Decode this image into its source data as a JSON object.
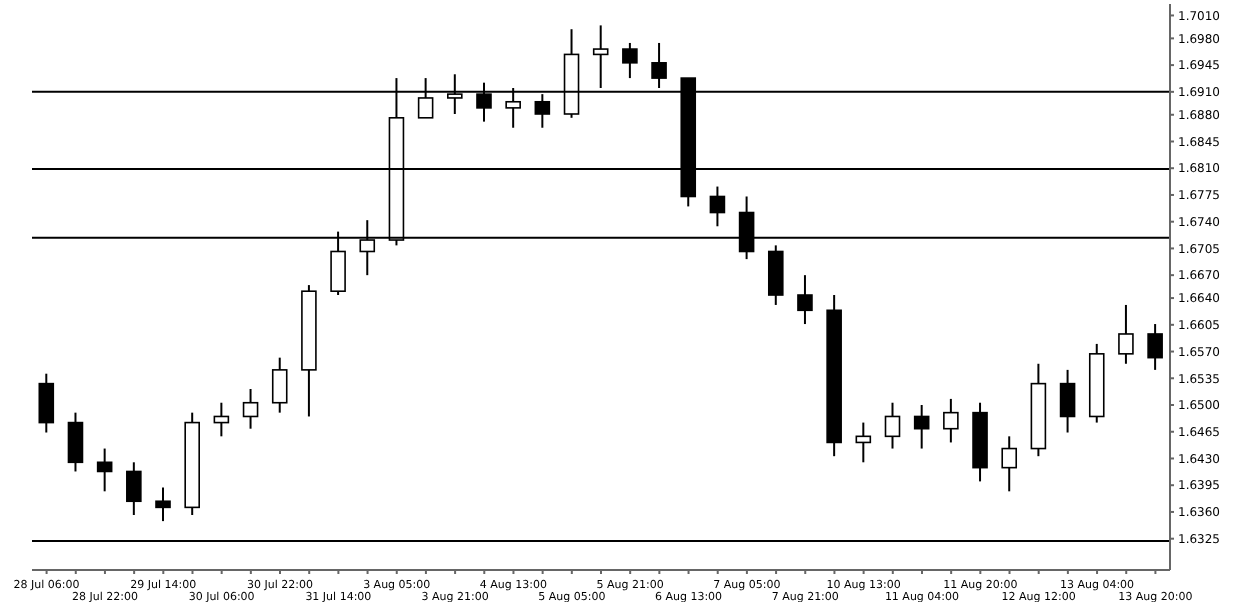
{
  "chart_data": {
    "type": "candlestick",
    "categories": [
      "28 Jul 06:00",
      null,
      "28 Jul 22:00",
      null,
      "29 Jul 14:00",
      null,
      "30 Jul 06:00",
      null,
      "30 Jul 22:00",
      null,
      "31 Jul 14:00",
      null,
      "3 Aug 05:00",
      null,
      "3 Aug 21:00",
      null,
      "4 Aug 13:00",
      null,
      "5 Aug 05:00",
      null,
      "5 Aug 21:00",
      null,
      "6 Aug 13:00",
      null,
      "7 Aug 05:00",
      null,
      "7 Aug 21:00",
      null,
      "10 Aug 13:00",
      null,
      "11 Aug 04:00",
      null,
      "11 Aug 20:00",
      null,
      "12 Aug 12:00",
      null,
      "13 Aug 04:00",
      null,
      "13 Aug 20:00"
    ],
    "ohlc": [
      [
        1.6528,
        1.6541,
        1.6464,
        1.6477
      ],
      [
        1.6477,
        1.649,
        1.6413,
        1.6425
      ],
      [
        1.6425,
        1.6443,
        1.6387,
        1.6413
      ],
      [
        1.6413,
        1.6425,
        1.6356,
        1.6374
      ],
      [
        1.6374,
        1.6392,
        1.6348,
        1.6366
      ],
      [
        1.6366,
        1.649,
        1.6356,
        1.6477
      ],
      [
        1.6477,
        1.6503,
        1.6459,
        1.6485
      ],
      [
        1.6485,
        1.6521,
        1.6469,
        1.6503
      ],
      [
        1.6503,
        1.6562,
        1.649,
        1.6546
      ],
      [
        1.6546,
        1.6657,
        1.6485,
        1.6649
      ],
      [
        1.6649,
        1.6727,
        1.6644,
        1.6701
      ],
      [
        1.6701,
        1.6742,
        1.667,
        1.6716
      ],
      [
        1.6716,
        1.6928,
        1.6709,
        1.6876
      ],
      [
        1.6876,
        1.6928,
        1.6876,
        1.6902
      ],
      [
        1.6902,
        1.6933,
        1.6881,
        1.6907
      ],
      [
        1.6907,
        1.6922,
        1.6871,
        1.6889
      ],
      [
        1.6889,
        1.6915,
        1.6863,
        1.6897
      ],
      [
        1.6897,
        1.6907,
        1.6863,
        1.6881
      ],
      [
        1.6881,
        1.6992,
        1.6876,
        1.6959
      ],
      [
        1.6959,
        1.6997,
        1.6915,
        1.6966
      ],
      [
        1.6966,
        1.6974,
        1.6928,
        1.6948
      ],
      [
        1.6948,
        1.6974,
        1.6915,
        1.6928
      ],
      [
        1.6928,
        1.6928,
        1.676,
        1.6773
      ],
      [
        1.6773,
        1.6786,
        1.6734,
        1.6752
      ],
      [
        1.6752,
        1.6773,
        1.6691,
        1.6701
      ],
      [
        1.6701,
        1.6709,
        1.6631,
        1.6644
      ],
      [
        1.6644,
        1.667,
        1.6606,
        1.6624
      ],
      [
        1.6624,
        1.6644,
        1.6433,
        1.6451
      ],
      [
        1.6451,
        1.6477,
        1.6425,
        1.6459
      ],
      [
        1.6459,
        1.6503,
        1.6443,
        1.6485
      ],
      [
        1.6485,
        1.65,
        1.6443,
        1.6469
      ],
      [
        1.6469,
        1.6508,
        1.6451,
        1.649
      ],
      [
        1.649,
        1.6503,
        1.64,
        1.6418
      ],
      [
        1.6418,
        1.6459,
        1.6387,
        1.6443
      ],
      [
        1.6443,
        1.6554,
        1.6433,
        1.6528
      ],
      [
        1.6528,
        1.6546,
        1.6464,
        1.6485
      ],
      [
        1.6485,
        1.658,
        1.6477,
        1.6567
      ],
      [
        1.6567,
        1.6631,
        1.6554,
        1.6593
      ],
      [
        1.6593,
        1.6606,
        1.6546,
        1.6562
      ]
    ],
    "ylim": [
      1.6284,
      1.7025
    ],
    "yticks": [
      {
        "value": 1.701,
        "label": "1.7010"
      },
      {
        "value": 1.698,
        "label": "1.6980"
      },
      1.6945,
      {
        "value": 1.691,
        "label": "1.6910"
      },
      {
        "value": 1.688,
        "label": "1.6880"
      },
      1.6845,
      {
        "value": 1.681,
        "label": "1.6810"
      },
      1.6775,
      {
        "value": 1.674,
        "label": "1.6740"
      },
      1.6705,
      {
        "value": 1.667,
        "label": "1.6670"
      },
      {
        "value": 1.664,
        "label": "1.6640"
      },
      1.6605,
      {
        "value": 1.657,
        "label": "1.6570"
      },
      1.6535,
      {
        "value": 1.65,
        "label": "1.6500"
      },
      1.6465,
      {
        "value": 1.643,
        "label": "1.6430"
      },
      1.6395,
      {
        "value": 1.636,
        "label": "1.6360"
      },
      1.6325
    ],
    "ref_lines": [
      {
        "axis": "y",
        "value": 1.691,
        "color": "#000000"
      },
      {
        "axis": "y",
        "value": 1.6809,
        "color": "#000000"
      },
      {
        "axis": "y",
        "value": 1.6719,
        "color": "#000000"
      },
      {
        "axis": "y",
        "value": 1.6322,
        "color": "#000000"
      }
    ],
    "color": "#000000"
  }
}
